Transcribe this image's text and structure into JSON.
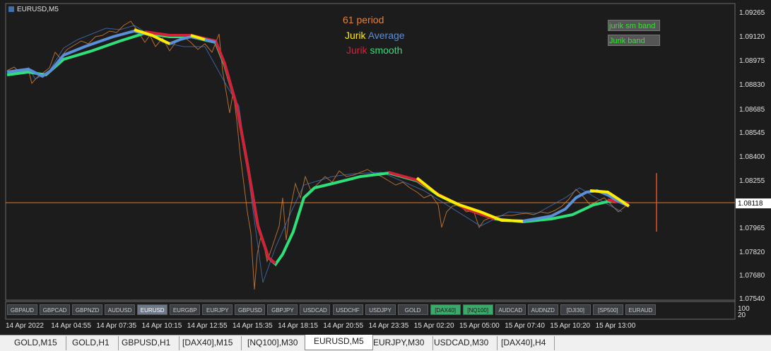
{
  "chart_window": {
    "symbol": "EURUSD,M5",
    "legend": {
      "period": "61 period",
      "line1": [
        "Jurik",
        "Average"
      ],
      "line2": [
        "Jurik",
        "smooth"
      ]
    },
    "bands": [
      "jurik sm band",
      "Jurik band"
    ],
    "price_axis": [
      "1.09265",
      "1.09120",
      "1.08975",
      "1.08830",
      "1.08685",
      "1.08545",
      "1.08400",
      "1.08255",
      "1.07965",
      "1.07820",
      "1.07680",
      "1.07540"
    ],
    "current_price": "1.08118",
    "indicator_scale": [
      "100",
      "20"
    ],
    "time_axis": [
      "14 Apr 2022",
      "14 Apr 04:55",
      "14 Apr 07:35",
      "14 Apr 10:15",
      "14 Apr 12:55",
      "14 Apr 15:35",
      "14 Apr 18:15",
      "14 Apr 20:55",
      "14 Apr 23:35",
      "15 Apr 02:20",
      "15 Apr 05:00",
      "15 Apr 07:40",
      "15 Apr 10:20",
      "15 Apr 13:00"
    ]
  },
  "symbol_buttons": [
    "GBPAUD",
    "GBPCAD",
    "GBPNZD",
    "AUDUSD",
    "EURUSD",
    "EURGBP",
    "EURJPY",
    "GBPUSD",
    "GBPJPY",
    "USDCAD",
    "USDCHF",
    "USDJPY",
    "GOLD",
    "[DAX40]",
    "[NQ100]",
    "AUDCAD",
    "AUDNZD",
    "[DJI30]",
    "[SP500]",
    "EURAUD"
  ],
  "tabs": [
    "GOLD,M15",
    "GOLD,H1",
    "GBPUSD,H1",
    "[DAX40],M15",
    "[NQ100],M30",
    "EURUSD,M5",
    "EURJPY,M30",
    "USDCAD,M30",
    "[DAX40],H4"
  ]
}
